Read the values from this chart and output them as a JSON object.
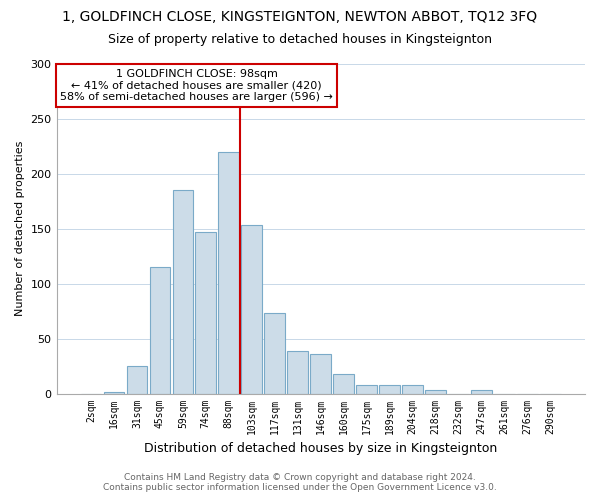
{
  "title": "1, GOLDFINCH CLOSE, KINGSTEIGNTON, NEWTON ABBOT, TQ12 3FQ",
  "subtitle": "Size of property relative to detached houses in Kingsteignton",
  "xlabel": "Distribution of detached houses by size in Kingsteignton",
  "ylabel": "Number of detached properties",
  "bar_labels": [
    "2sqm",
    "16sqm",
    "31sqm",
    "45sqm",
    "59sqm",
    "74sqm",
    "88sqm",
    "103sqm",
    "117sqm",
    "131sqm",
    "146sqm",
    "160sqm",
    "175sqm",
    "189sqm",
    "204sqm",
    "218sqm",
    "232sqm",
    "247sqm",
    "261sqm",
    "276sqm",
    "290sqm"
  ],
  "bar_values": [
    0,
    1,
    25,
    115,
    185,
    147,
    220,
    153,
    73,
    39,
    36,
    18,
    8,
    8,
    8,
    3,
    0,
    3,
    0,
    0,
    0
  ],
  "bar_color": "#ccdce8",
  "bar_edge_color": "#7aaac8",
  "vline_color": "#cc0000",
  "ylim": [
    0,
    300
  ],
  "yticks": [
    0,
    50,
    100,
    150,
    200,
    250,
    300
  ],
  "annotation_title": "1 GOLDFINCH CLOSE: 98sqm",
  "annotation_line1": "← 41% of detached houses are smaller (420)",
  "annotation_line2": "58% of semi-detached houses are larger (596) →",
  "annotation_box_color": "#ffffff",
  "annotation_box_edge": "#cc0000",
  "footer_line1": "Contains HM Land Registry data © Crown copyright and database right 2024.",
  "footer_line2": "Contains public sector information licensed under the Open Government Licence v3.0.",
  "background_color": "#ffffff",
  "grid_color": "#c8d8e8",
  "title_fontsize": 10,
  "subtitle_fontsize": 9,
  "xlabel_fontsize": 9,
  "ylabel_fontsize": 8,
  "ytick_fontsize": 8,
  "xtick_fontsize": 7,
  "ann_fontsize": 8,
  "footer_fontsize": 6.5,
  "vline_x_index": 7
}
